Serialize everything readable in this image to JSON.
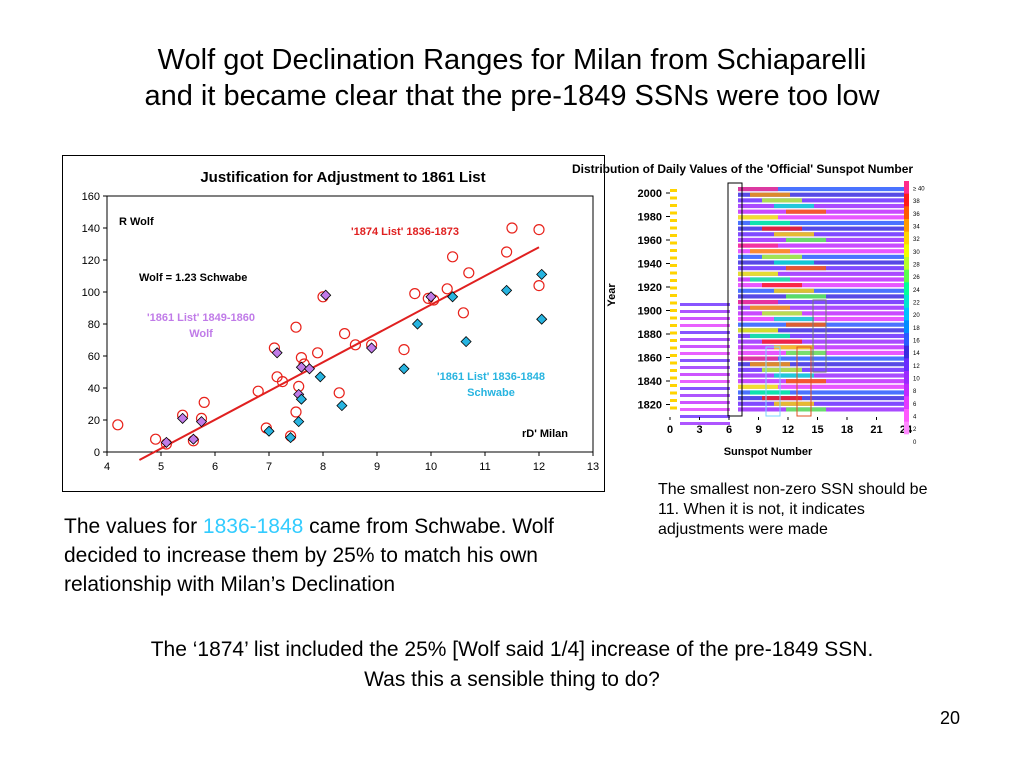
{
  "slide": {
    "title_line1": "Wolf got Declination Ranges for Milan from Schiaparelli",
    "title_line2": "and it became clear that the pre-1849 SSNs were too low",
    "body_part1": "The values for ",
    "body_highlight": "1836-1848",
    "body_part2": " came from Schwabe. Wolf decided to increase them by 25% to match his own relationship with Milan’s Declination",
    "note": "The smallest non-zero SSN should be 11. When it is not, it indicates adjustments were made",
    "bottom_line1": "The ‘1874’ list included the 25% [Wolf said 1/4] increase of the pre-1849 SSN.",
    "bottom_line2": "Was this a sensible thing to do?",
    "page_number": "20"
  },
  "colors": {
    "circle": "#e8221b",
    "diamond_fill": "#27b4e0",
    "diamond_fill_1861": "#c07be8",
    "fit_line": "#e02020",
    "label_1874": "#e02020",
    "label_1861": "#c07be8",
    "label_schwabe": "#27b4e0"
  },
  "chart_data": [
    {
      "type": "scatter",
      "title": "Justification for Adjustment to 1861 List",
      "ylabel": "R Wolf",
      "xlabel": "rD' Milan",
      "xlim": [
        4,
        13
      ],
      "ylim": [
        0,
        160
      ],
      "xticks": [
        "4",
        "5",
        "6",
        "7",
        "8",
        "9",
        "10",
        "11",
        "12",
        "13"
      ],
      "yticks": [
        "0",
        "20",
        "40",
        "60",
        "80",
        "100",
        "120",
        "140",
        "160"
      ],
      "annotations": {
        "label_1874": "'1874 List' 1836-1873",
        "equation": "Wolf = 1.23 Schwabe",
        "label_1861_wolf": [
          "'1861 List' 1849-1860",
          "Wolf"
        ],
        "label_1861_schwabe": [
          "'1861 List' 1836-1848",
          "Schwabe"
        ]
      },
      "fit_line": {
        "x": [
          4.6,
          12.0
        ],
        "y": [
          -5,
          128
        ]
      },
      "series": [
        {
          "marker": "open-circle",
          "points": [
            [
              4.2,
              17
            ],
            [
              4.9,
              8
            ],
            [
              5.1,
              5
            ],
            [
              5.4,
              23
            ],
            [
              5.6,
              7
            ],
            [
              5.75,
              21
            ],
            [
              5.8,
              31
            ],
            [
              6.8,
              38
            ],
            [
              6.95,
              15
            ],
            [
              7.1,
              65
            ],
            [
              7.15,
              47
            ],
            [
              7.25,
              44
            ],
            [
              7.4,
              10
            ],
            [
              7.5,
              78
            ],
            [
              7.5,
              25
            ],
            [
              7.55,
              41
            ],
            [
              7.6,
              59
            ],
            [
              7.65,
              55
            ],
            [
              7.9,
              62
            ],
            [
              8.0,
              97
            ],
            [
              8.3,
              37
            ],
            [
              8.4,
              74
            ],
            [
              8.6,
              67
            ],
            [
              8.9,
              67
            ],
            [
              9.5,
              64
            ],
            [
              9.7,
              99
            ],
            [
              9.95,
              96
            ],
            [
              10.05,
              95
            ],
            [
              10.3,
              102
            ],
            [
              10.4,
              122
            ],
            [
              10.6,
              87
            ],
            [
              10.7,
              112
            ],
            [
              11.4,
              125
            ],
            [
              11.5,
              140
            ],
            [
              12.0,
              104
            ],
            [
              12.0,
              139
            ]
          ]
        },
        {
          "marker": "diamond-1861",
          "points": [
            [
              5.1,
              6
            ],
            [
              5.4,
              21
            ],
            [
              5.6,
              8
            ],
            [
              5.75,
              19
            ],
            [
              7.15,
              62
            ],
            [
              7.55,
              36
            ],
            [
              7.6,
              53
            ],
            [
              7.75,
              52
            ],
            [
              8.05,
              98
            ],
            [
              8.9,
              65
            ],
            [
              10.0,
              97
            ]
          ]
        },
        {
          "marker": "diamond-schwabe",
          "points": [
            [
              7.0,
              13
            ],
            [
              7.4,
              9
            ],
            [
              7.55,
              19
            ],
            [
              7.6,
              33
            ],
            [
              7.95,
              47
            ],
            [
              8.35,
              29
            ],
            [
              9.5,
              52
            ],
            [
              9.75,
              80
            ],
            [
              10.4,
              97
            ],
            [
              10.65,
              69
            ],
            [
              11.4,
              101
            ],
            [
              12.05,
              111
            ],
            [
              12.05,
              83
            ]
          ]
        }
      ]
    },
    {
      "type": "heatmap",
      "title": "Distribution of Daily Values of the 'Official' Sunspot Number",
      "xlabel": "Sunspot Number",
      "ylabel": "Year",
      "xticks": [
        "0",
        "3",
        "6",
        "9",
        "12",
        "15",
        "18",
        "21",
        "24"
      ],
      "yticks": [
        "2000",
        "1980",
        "1960",
        "1940",
        "1920",
        "1900",
        "1880",
        "1860",
        "1840",
        "1820"
      ],
      "colorbar_ticks": [
        "≥ 40",
        "38",
        "36",
        "34",
        "32",
        "30",
        "28",
        "26",
        "24",
        "22",
        "20",
        "18",
        "16",
        "14",
        "12",
        "10",
        "8",
        "6",
        "4",
        "2",
        "0"
      ],
      "color_scale": [
        "#ff2a8a",
        "#ff1a1a",
        "#ff5a00",
        "#ff9a00",
        "#ffd400",
        "#f2ff00",
        "#b6ff2a",
        "#5aff4a",
        "#00ff9a",
        "#00e6d2",
        "#00c0ff",
        "#008cff",
        "#2a5aff",
        "#3a2ae0",
        "#6a2aff",
        "#9a2aff",
        "#c02aff",
        "#e43aff",
        "#ff5aff",
        "#ff8aff",
        "#ffffff"
      ]
    }
  ]
}
